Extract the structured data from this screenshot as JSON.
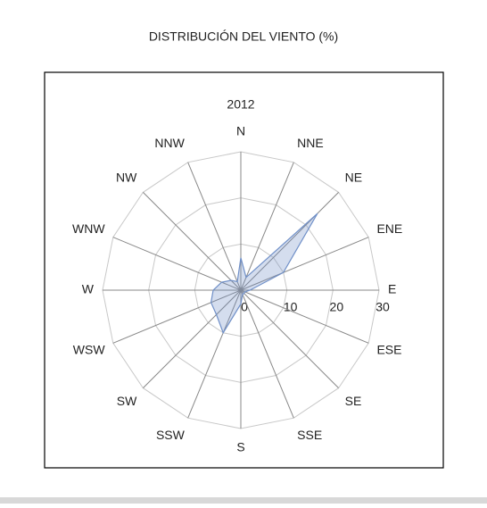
{
  "chart_data": {
    "type": "radar",
    "title": "DISTRIBUCIÓN DEL VIENTO (%)",
    "subtitle": "2012",
    "categories": [
      "N",
      "NNE",
      "NE",
      "ENE",
      "E",
      "ESE",
      "SE",
      "SSE",
      "S",
      "SSW",
      "SW",
      "WSW",
      "W",
      "WNW",
      "NW",
      "NNW"
    ],
    "series": [
      {
        "name": "2012",
        "color": "#7090c8",
        "values": [
          7,
          3,
          23.5,
          10,
          2,
          1,
          1,
          1,
          3,
          10,
          7.5,
          7,
          6,
          4.5,
          3,
          2
        ]
      }
    ],
    "ylim": [
      0,
      30
    ],
    "yticks": [
      0,
      10,
      20,
      30
    ]
  }
}
